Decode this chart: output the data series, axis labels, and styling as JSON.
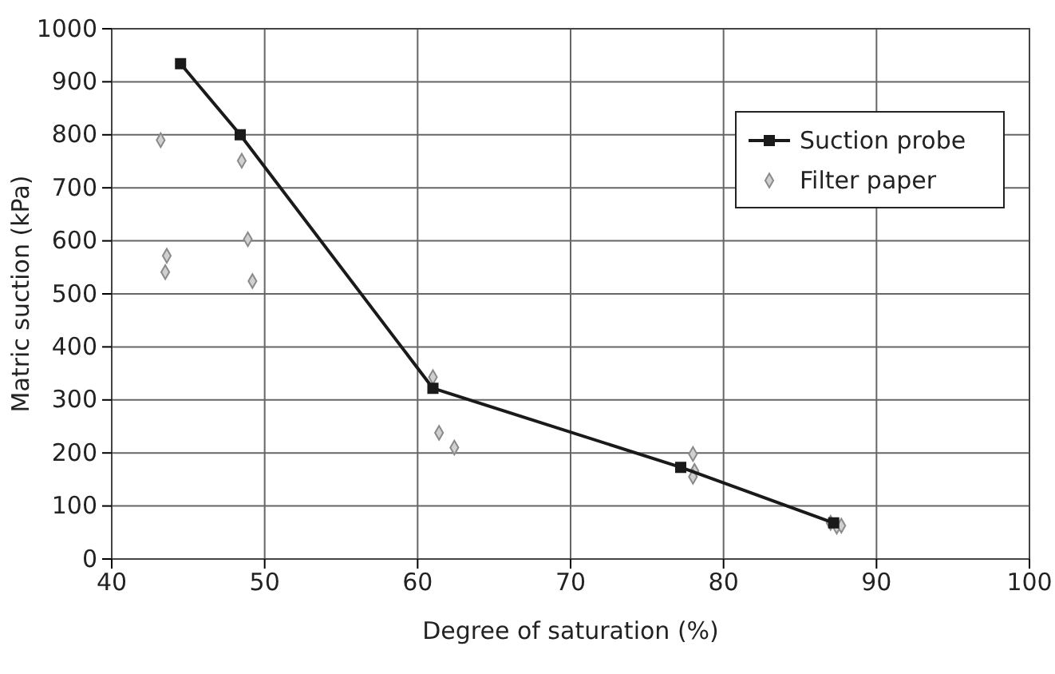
{
  "chart_data": {
    "type": "line",
    "xlabel": "Degree of saturation (%)",
    "ylabel": "Matric suction (kPa)",
    "xlim": [
      40,
      100
    ],
    "xticks": [
      40,
      50,
      60,
      70,
      80,
      90,
      100
    ],
    "ylim": [
      0,
      1000
    ],
    "yticks": [
      0,
      100,
      200,
      300,
      400,
      500,
      600,
      700,
      800,
      900,
      1000
    ],
    "grid": true,
    "legend": "top right",
    "series": [
      {
        "name": "Suction probe",
        "marker": "square",
        "color": "#1a1a1a",
        "x": [
          44.5,
          48.4,
          61.0,
          77.2,
          87.2
        ],
        "values": [
          934,
          800,
          322,
          173,
          68
        ]
      },
      {
        "name": "Filter paper",
        "type": "scatter",
        "marker": "diamond",
        "color": "#8a8a8a",
        "x": [
          43.2,
          43.6,
          43.5,
          48.5,
          48.9,
          49.2,
          61.0,
          61.4,
          62.4,
          78.0,
          78.1,
          78.0,
          87.0,
          87.4,
          87.7
        ],
        "values": [
          790,
          572,
          541,
          751,
          603,
          524,
          343,
          238,
          210,
          198,
          166,
          155,
          68,
          61,
          63
        ]
      }
    ]
  }
}
